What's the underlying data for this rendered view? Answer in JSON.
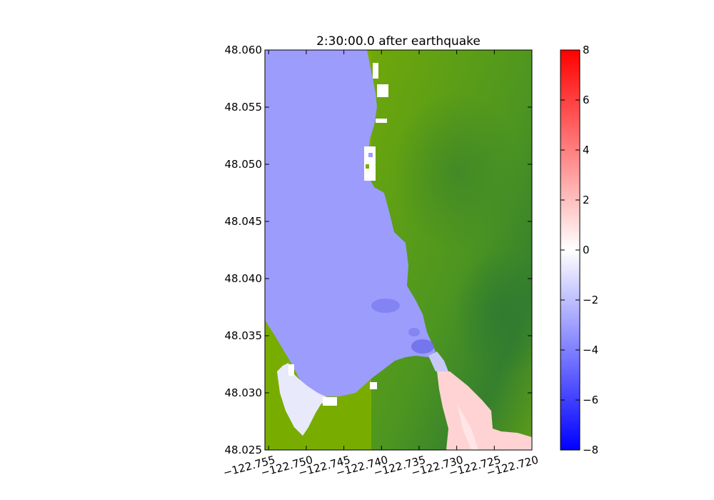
{
  "title": "2:30:00.0 after earthquake",
  "map": {
    "x_range": [
      -122.7555,
      -122.72
    ],
    "y_range": [
      48.025,
      48.06
    ],
    "colors": {
      "water_blue": "#9c9cfc",
      "land_green_light": "#78ad00",
      "land_green_dark": "#3a8a2a",
      "dark_blue_patch": "#6b6be8",
      "white_patch": "#ffffff",
      "pink_patch": "#ffd6d6",
      "pale_lilac": "#e8e8fb"
    },
    "x_ticks": [
      {
        "value": -122.755,
        "label": "−122.755"
      },
      {
        "value": -122.75,
        "label": "−122.750"
      },
      {
        "value": -122.745,
        "label": "−122.745"
      },
      {
        "value": -122.74,
        "label": "−122.740"
      },
      {
        "value": -122.735,
        "label": "−122.735"
      },
      {
        "value": -122.73,
        "label": "−122.730"
      },
      {
        "value": -122.725,
        "label": "−122.725"
      },
      {
        "value": -122.72,
        "label": "−122.720"
      }
    ],
    "y_ticks": [
      {
        "value": 48.06,
        "label": "48.060"
      },
      {
        "value": 48.055,
        "label": "48.055"
      },
      {
        "value": 48.05,
        "label": "48.050"
      },
      {
        "value": 48.045,
        "label": "48.045"
      },
      {
        "value": 48.04,
        "label": "48.040"
      },
      {
        "value": 48.035,
        "label": "48.035"
      },
      {
        "value": 48.03,
        "label": "48.030"
      },
      {
        "value": 48.025,
        "label": "48.025"
      }
    ]
  },
  "colorbar": {
    "range": [
      -8,
      8
    ],
    "colors": [
      "#0000ff",
      "#ffffff",
      "#ff0000"
    ],
    "ticks": [
      {
        "value": 8,
        "label": "8"
      },
      {
        "value": 6,
        "label": "6"
      },
      {
        "value": 4,
        "label": "4"
      },
      {
        "value": 2,
        "label": "2"
      },
      {
        "value": 0,
        "label": "0"
      },
      {
        "value": -2,
        "label": "−2"
      },
      {
        "value": -4,
        "label": "−4"
      },
      {
        "value": -6,
        "label": "−6"
      },
      {
        "value": -8,
        "label": "−8"
      }
    ]
  }
}
